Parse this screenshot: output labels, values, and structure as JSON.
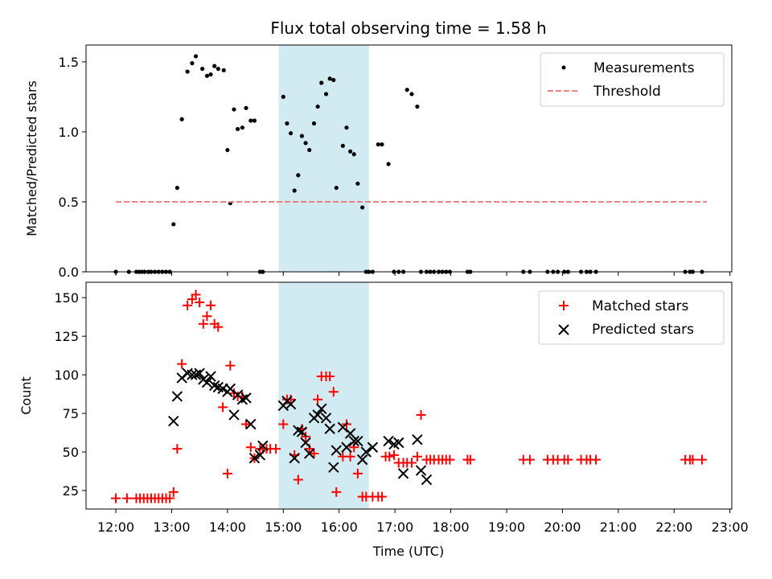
{
  "chart_data": [
    {
      "type": "scatter",
      "title": "Flux total observing time = 1.58 h",
      "xlabel": "",
      "ylabel": "Matched/Predicted stars",
      "xlim": [
        "11:28",
        "23:02"
      ],
      "ylim": [
        0,
        1.62
      ],
      "yticks": [
        0.0,
        0.5,
        1.0,
        1.5
      ],
      "ytick_labels": [
        "0.0",
        "0.5",
        "1.0",
        "1.5"
      ],
      "legend_position": "top-right",
      "shaded_interval": [
        "14:55",
        "16:32"
      ],
      "shade_color": "#add8e6",
      "series": [
        {
          "name": "Measurements",
          "kind": "scatter",
          "color": "#000000",
          "x": [
            "12:00",
            "12:14",
            "12:22",
            "12:25",
            "12:28",
            "12:31",
            "12:35",
            "12:38",
            "12:42",
            "12:46",
            "12:50",
            "12:54",
            "12:58",
            "13:02",
            "13:06",
            "13:11",
            "13:17",
            "13:22",
            "13:26",
            "13:33",
            "13:38",
            "13:42",
            "13:46",
            "13:50",
            "13:56",
            "14:00",
            "14:03",
            "14:07",
            "14:11",
            "14:16",
            "14:20",
            "14:25",
            "14:29",
            "14:35",
            "14:38",
            "15:00",
            "15:04",
            "15:08",
            "15:12",
            "15:16",
            "15:20",
            "15:24",
            "15:28",
            "15:33",
            "15:37",
            "15:41",
            "15:46",
            "15:50",
            "15:54",
            "15:57",
            "16:04",
            "16:08",
            "16:12",
            "16:16",
            "16:20",
            "16:25",
            "16:29",
            "16:32",
            "16:36",
            "16:42",
            "16:46",
            "16:53",
            "16:59",
            "17:04",
            "17:09",
            "17:13",
            "17:18",
            "17:24",
            "17:28",
            "17:34",
            "17:38",
            "17:42",
            "17:47",
            "17:51",
            "17:55",
            "17:59",
            "18:18",
            "18:21",
            "19:18",
            "19:25",
            "19:44",
            "19:50",
            "19:55",
            "20:02",
            "20:06",
            "20:20",
            "20:26",
            "20:30",
            "20:36",
            "22:12",
            "22:17",
            "22:20",
            "22:30"
          ],
          "values": [
            0,
            0,
            0,
            0,
            0,
            0,
            0,
            0,
            0,
            0,
            0,
            0,
            0,
            0.34,
            0.6,
            1.09,
            1.43,
            1.49,
            1.54,
            1.45,
            1.4,
            1.41,
            1.47,
            1.45,
            1.44,
            0.87,
            0.49,
            1.16,
            1.02,
            1.03,
            1.17,
            1.08,
            1.08,
            0,
            0,
            1.25,
            1.06,
            0.99,
            0.58,
            0.69,
            0.97,
            0.92,
            0.87,
            1.06,
            1.18,
            1.35,
            1.27,
            1.38,
            1.37,
            0.6,
            0.9,
            1.03,
            0.86,
            0.84,
            0.63,
            0.46,
            0,
            0,
            0,
            0.91,
            0.91,
            0.77,
            0,
            0,
            0,
            1.3,
            1.27,
            1.18,
            0,
            0,
            0,
            0,
            0,
            0,
            0,
            0,
            0,
            0,
            0,
            0,
            0,
            0,
            0,
            0,
            0,
            0,
            0,
            0,
            0,
            0,
            0,
            0,
            0
          ]
        },
        {
          "name": "Threshold",
          "kind": "dashed-line",
          "color": "#f08080",
          "x": [
            "12:00",
            "22:35"
          ],
          "values": [
            0.5,
            0.5
          ]
        }
      ]
    },
    {
      "type": "scatter",
      "title": "",
      "xlabel": "Time (UTC)",
      "ylabel": "Count",
      "xlim": [
        "11:28",
        "23:02"
      ],
      "ylim": [
        13,
        160
      ],
      "yticks": [
        25,
        50,
        75,
        100,
        125,
        150
      ],
      "ytick_labels": [
        "25",
        "50",
        "75",
        "100",
        "125",
        "150"
      ],
      "xticks": [
        "12:00",
        "13:00",
        "14:00",
        "15:00",
        "16:00",
        "17:00",
        "18:00",
        "19:00",
        "20:00",
        "21:00",
        "22:00",
        "23:00"
      ],
      "xtick_labels": [
        "12:00",
        "13:00",
        "14:00",
        "15:00",
        "16:00",
        "17:00",
        "18:00",
        "19:00",
        "20:00",
        "21:00",
        "22:00",
        "23:00"
      ],
      "legend_position": "top-right",
      "shaded_interval": [
        "14:55",
        "16:32"
      ],
      "shade_color": "#add8e6",
      "series": [
        {
          "name": "Matched stars",
          "kind": "plus",
          "color": "#ff0000",
          "x": [
            "12:00",
            "12:12",
            "12:22",
            "12:26",
            "12:30",
            "12:34",
            "12:38",
            "12:42",
            "12:46",
            "12:50",
            "12:54",
            "12:58",
            "13:02",
            "13:06",
            "13:11",
            "13:17",
            "13:22",
            "13:26",
            "13:30",
            "13:34",
            "13:38",
            "13:42",
            "13:46",
            "13:50",
            "13:55",
            "14:00",
            "14:03",
            "14:07",
            "14:11",
            "14:16",
            "14:20",
            "14:25",
            "14:29",
            "14:35",
            "14:38",
            "14:42",
            "14:46",
            "14:52",
            "15:00",
            "15:04",
            "15:08",
            "15:12",
            "15:16",
            "15:20",
            "15:24",
            "15:28",
            "15:33",
            "15:37",
            "15:41",
            "15:46",
            "15:50",
            "15:54",
            "15:57",
            "16:04",
            "16:08",
            "16:12",
            "16:16",
            "16:20",
            "16:25",
            "16:29",
            "16:36",
            "16:42",
            "16:46",
            "16:50",
            "16:54",
            "16:59",
            "17:04",
            "17:09",
            "17:13",
            "17:18",
            "17:24",
            "17:28",
            "17:34",
            "17:38",
            "17:42",
            "17:47",
            "17:51",
            "17:55",
            "17:59",
            "18:18",
            "18:21",
            "19:18",
            "19:25",
            "19:44",
            "19:50",
            "19:55",
            "20:02",
            "20:06",
            "20:20",
            "20:26",
            "20:30",
            "20:36",
            "22:12",
            "22:17",
            "22:20",
            "22:30"
          ],
          "values": [
            20,
            20,
            20,
            20,
            20,
            20,
            20,
            20,
            20,
            20,
            20,
            20,
            24,
            52,
            107,
            145,
            149,
            152,
            147,
            133,
            138,
            145,
            133,
            131,
            79,
            36,
            106,
            88,
            86,
            86,
            68,
            53,
            46,
            52,
            52,
            52,
            52,
            52,
            68,
            84,
            84,
            48,
            32,
            65,
            60,
            52,
            49,
            84,
            99,
            99,
            99,
            89,
            24,
            47,
            68,
            47,
            53,
            36,
            21,
            21,
            21,
            21,
            21,
            47,
            47,
            48,
            43,
            43,
            43,
            43,
            47,
            74,
            45,
            45,
            45,
            45,
            45,
            45,
            45,
            45,
            45,
            45,
            45,
            45,
            45,
            45,
            45,
            45,
            45,
            45,
            45,
            45,
            45,
            45,
            45,
            45
          ]
        },
        {
          "name": "Predicted stars",
          "kind": "cross",
          "color": "#000000",
          "x": [
            "13:02",
            "13:06",
            "13:11",
            "13:17",
            "13:22",
            "13:26",
            "13:30",
            "13:34",
            "13:38",
            "13:42",
            "13:46",
            "13:50",
            "13:55",
            "14:00",
            "14:03",
            "14:07",
            "14:11",
            "14:16",
            "14:20",
            "14:25",
            "14:29",
            "14:35",
            "14:38",
            "15:00",
            "15:04",
            "15:08",
            "15:12",
            "15:16",
            "15:20",
            "15:24",
            "15:28",
            "15:33",
            "15:37",
            "15:41",
            "15:46",
            "15:50",
            "15:54",
            "15:57",
            "16:04",
            "16:08",
            "16:12",
            "16:16",
            "16:20",
            "16:25",
            "16:29",
            "16:36",
            "16:53",
            "16:59",
            "17:04",
            "17:09",
            "17:24",
            "17:28",
            "17:34"
          ],
          "values": [
            70,
            86,
            98,
            101,
            100,
            100,
            101,
            97,
            95,
            99,
            93,
            92,
            91,
            89,
            91,
            74,
            87,
            84,
            85,
            68,
            46,
            48,
            54,
            80,
            83,
            81,
            46,
            64,
            63,
            56,
            49,
            72,
            74,
            78,
            72,
            65,
            40,
            51,
            66,
            53,
            62,
            57,
            57,
            45,
            50,
            53,
            57,
            55,
            56,
            36,
            58,
            38,
            32
          ]
        }
      ]
    }
  ]
}
